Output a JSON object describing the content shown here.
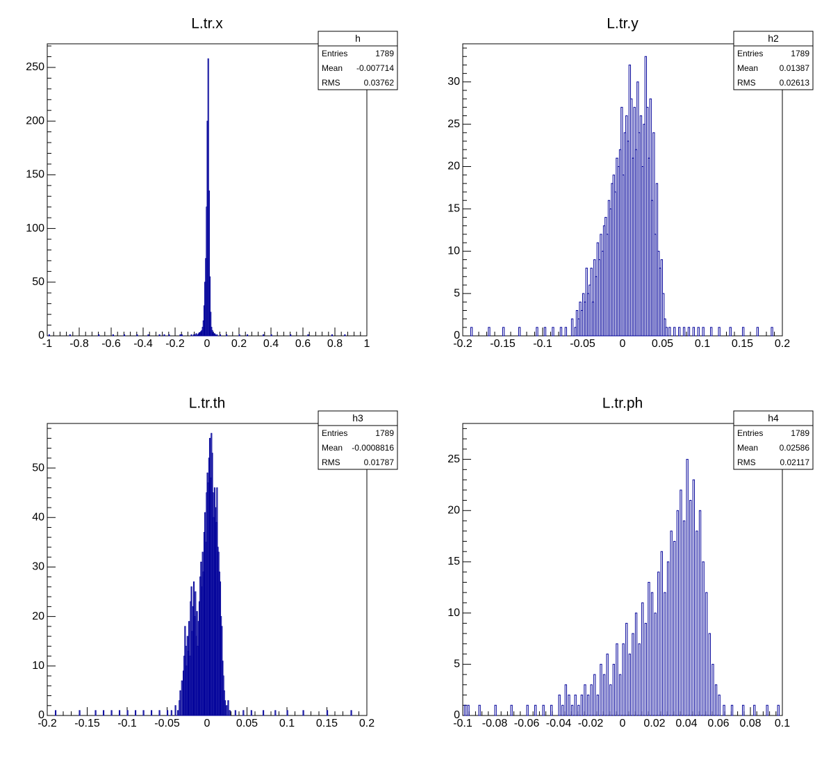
{
  "colors": {
    "histogram": "#000099",
    "frame": "#000000",
    "background": "#ffffff"
  },
  "chart_data": [
    {
      "type": "histogram",
      "title": "L.tr.x",
      "xlim": [
        -1,
        1
      ],
      "ylim": [
        0,
        272
      ],
      "x_ticks": [
        -1,
        -0.8,
        -0.6,
        -0.4,
        -0.2,
        0,
        0.2,
        0.4,
        0.6,
        0.8,
        1
      ],
      "x_tick_labels": [
        "-1",
        "-0.8",
        "-0.6",
        "-0.4",
        "-0.2",
        "0",
        "0.2",
        "0.4",
        "0.6",
        "0.8",
        "1"
      ],
      "y_ticks": [
        0,
        50,
        100,
        150,
        200,
        250
      ],
      "y_tick_labels": [
        "0",
        "50",
        "100",
        "150",
        "200",
        "250"
      ],
      "stats": {
        "name": "h",
        "rows": [
          {
            "label": "Entries",
            "value": "1789"
          },
          {
            "label": "Mean",
            "value": "-0.007714"
          },
          {
            "label": "RMS",
            "value": "0.03762"
          }
        ]
      },
      "bin_width": 0.005,
      "bins": [
        [
          -0.99,
          1
        ],
        [
          -0.86,
          1
        ],
        [
          -0.68,
          1
        ],
        [
          -0.59,
          1
        ],
        [
          -0.52,
          1
        ],
        [
          -0.44,
          1
        ],
        [
          -0.37,
          1
        ],
        [
          -0.3,
          1
        ],
        [
          -0.27,
          1
        ],
        [
          -0.24,
          1
        ],
        [
          -0.17,
          1
        ],
        [
          -0.16,
          1
        ],
        [
          -0.1,
          1
        ],
        [
          -0.085,
          1
        ],
        [
          -0.08,
          1
        ],
        [
          -0.07,
          2
        ],
        [
          -0.06,
          1
        ],
        [
          -0.055,
          2
        ],
        [
          -0.05,
          3
        ],
        [
          -0.045,
          3
        ],
        [
          -0.04,
          4
        ],
        [
          -0.035,
          5
        ],
        [
          -0.03,
          8
        ],
        [
          -0.025,
          14
        ],
        [
          -0.02,
          28
        ],
        [
          -0.015,
          50
        ],
        [
          -0.01,
          72
        ],
        [
          -0.005,
          120
        ],
        [
          0,
          200
        ],
        [
          0.005,
          258
        ],
        [
          0.01,
          135
        ],
        [
          0.015,
          55
        ],
        [
          0.02,
          22
        ],
        [
          0.025,
          8
        ],
        [
          0.03,
          5
        ],
        [
          0.035,
          3
        ],
        [
          0.04,
          2
        ],
        [
          0.045,
          2
        ],
        [
          0.05,
          1
        ],
        [
          0.06,
          1
        ],
        [
          0.08,
          1
        ],
        [
          0.12,
          1
        ],
        [
          0.2,
          1
        ],
        [
          0.25,
          1
        ],
        [
          0.35,
          1
        ],
        [
          0.4,
          1
        ],
        [
          0.52,
          1
        ],
        [
          0.63,
          1
        ],
        [
          0.78,
          1
        ],
        [
          0.86,
          1
        ]
      ]
    },
    {
      "type": "histogram",
      "title": "L.tr.y",
      "xlim": [
        -0.2,
        0.2
      ],
      "ylim": [
        0,
        34.5
      ],
      "x_ticks": [
        -0.2,
        -0.15,
        -0.1,
        -0.05,
        0,
        0.05,
        0.1,
        0.15,
        0.2
      ],
      "x_tick_labels": [
        "-0.2",
        "-0.15",
        "-0.1",
        "-0.05",
        "0",
        "0.05",
        "0.1",
        "0.15",
        "0.2"
      ],
      "y_ticks": [
        0,
        5,
        10,
        15,
        20,
        25,
        30
      ],
      "y_tick_labels": [
        "0",
        "5",
        "10",
        "15",
        "20",
        "25",
        "30"
      ],
      "stats": {
        "name": "h2",
        "rows": [
          {
            "label": "Entries",
            "value": "1789"
          },
          {
            "label": "Mean",
            "value": "0.01387"
          },
          {
            "label": "RMS",
            "value": "0.02613"
          }
        ]
      },
      "bin_width": 0.002,
      "bins": [
        [
          -0.19,
          1
        ],
        [
          -0.168,
          1
        ],
        [
          -0.15,
          1
        ],
        [
          -0.13,
          1
        ],
        [
          -0.108,
          1
        ],
        [
          -0.098,
          1
        ],
        [
          -0.088,
          1
        ],
        [
          -0.078,
          1
        ],
        [
          -0.072,
          1
        ],
        [
          -0.064,
          2
        ],
        [
          -0.06,
          1
        ],
        [
          -0.058,
          3
        ],
        [
          -0.056,
          2
        ],
        [
          -0.054,
          4
        ],
        [
          -0.052,
          3
        ],
        [
          -0.05,
          5
        ],
        [
          -0.048,
          4
        ],
        [
          -0.046,
          8
        ],
        [
          -0.044,
          5
        ],
        [
          -0.042,
          6
        ],
        [
          -0.04,
          8
        ],
        [
          -0.038,
          4
        ],
        [
          -0.036,
          9
        ],
        [
          -0.034,
          7
        ],
        [
          -0.032,
          11
        ],
        [
          -0.03,
          9
        ],
        [
          -0.028,
          12
        ],
        [
          -0.026,
          10
        ],
        [
          -0.024,
          13
        ],
        [
          -0.022,
          14
        ],
        [
          -0.02,
          12
        ],
        [
          -0.018,
          16
        ],
        [
          -0.016,
          15
        ],
        [
          -0.014,
          18
        ],
        [
          -0.012,
          19
        ],
        [
          -0.01,
          17
        ],
        [
          -0.008,
          21
        ],
        [
          -0.006,
          20
        ],
        [
          -0.004,
          22
        ],
        [
          -0.002,
          27
        ],
        [
          0,
          19
        ],
        [
          0.002,
          24
        ],
        [
          0.004,
          26
        ],
        [
          0.006,
          23
        ],
        [
          0.008,
          32
        ],
        [
          0.01,
          28
        ],
        [
          0.012,
          21
        ],
        [
          0.014,
          27
        ],
        [
          0.016,
          22
        ],
        [
          0.018,
          30
        ],
        [
          0.02,
          24
        ],
        [
          0.022,
          26
        ],
        [
          0.024,
          20
        ],
        [
          0.026,
          25
        ],
        [
          0.028,
          33
        ],
        [
          0.03,
          27
        ],
        [
          0.032,
          21
        ],
        [
          0.034,
          28
        ],
        [
          0.036,
          16
        ],
        [
          0.038,
          24
        ],
        [
          0.04,
          12
        ],
        [
          0.042,
          18
        ],
        [
          0.044,
          10
        ],
        [
          0.046,
          8
        ],
        [
          0.048,
          9
        ],
        [
          0.05,
          5
        ],
        [
          0.052,
          2
        ],
        [
          0.054,
          1
        ],
        [
          0.058,
          1
        ],
        [
          0.064,
          1
        ],
        [
          0.07,
          1
        ],
        [
          0.076,
          1
        ],
        [
          0.082,
          1
        ],
        [
          0.088,
          1
        ],
        [
          0.094,
          1
        ],
        [
          0.1,
          1
        ],
        [
          0.11,
          1
        ],
        [
          0.12,
          1
        ],
        [
          0.134,
          1
        ],
        [
          0.15,
          1
        ],
        [
          0.168,
          1
        ],
        [
          0.186,
          1
        ]
      ]
    },
    {
      "type": "histogram",
      "title": "L.tr.th",
      "xlim": [
        -0.2,
        0.2
      ],
      "ylim": [
        0,
        59
      ],
      "x_ticks": [
        -0.2,
        -0.15,
        -0.1,
        -0.05,
        0,
        0.05,
        0.1,
        0.15,
        0.2
      ],
      "x_tick_labels": [
        "-0.2",
        "-0.15",
        "-0.1",
        "-0.05",
        "0",
        "0.05",
        "0.1",
        "0.15",
        "0.2"
      ],
      "y_ticks": [
        0,
        10,
        20,
        30,
        40,
        50
      ],
      "y_tick_labels": [
        "0",
        "10",
        "20",
        "30",
        "40",
        "50"
      ],
      "stats": {
        "name": "h3",
        "rows": [
          {
            "label": "Entries",
            "value": "1789"
          },
          {
            "label": "Mean",
            "value": "-0.0008816"
          },
          {
            "label": "RMS",
            "value": "0.01787"
          }
        ]
      },
      "bin_width": 0.001,
      "bins": [
        [
          -0.19,
          1
        ],
        [
          -0.16,
          1
        ],
        [
          -0.14,
          1
        ],
        [
          -0.13,
          1
        ],
        [
          -0.12,
          1
        ],
        [
          -0.11,
          1
        ],
        [
          -0.1,
          1
        ],
        [
          -0.09,
          1
        ],
        [
          -0.08,
          1
        ],
        [
          -0.07,
          1
        ],
        [
          -0.06,
          1
        ],
        [
          -0.05,
          1
        ],
        [
          -0.045,
          1
        ],
        [
          -0.04,
          2
        ],
        [
          -0.037,
          1
        ],
        [
          -0.035,
          3
        ],
        [
          -0.034,
          5
        ],
        [
          -0.032,
          7
        ],
        [
          -0.03,
          9
        ],
        [
          -0.029,
          12
        ],
        [
          -0.028,
          18
        ],
        [
          -0.027,
          14
        ],
        [
          -0.026,
          10
        ],
        [
          -0.025,
          16
        ],
        [
          -0.024,
          13
        ],
        [
          -0.023,
          19
        ],
        [
          -0.022,
          12
        ],
        [
          -0.021,
          23
        ],
        [
          -0.02,
          26
        ],
        [
          -0.019,
          17
        ],
        [
          -0.018,
          22
        ],
        [
          -0.017,
          27
        ],
        [
          -0.016,
          20
        ],
        [
          -0.015,
          25
        ],
        [
          -0.014,
          16
        ],
        [
          -0.013,
          21
        ],
        [
          -0.012,
          14
        ],
        [
          -0.011,
          19
        ],
        [
          -0.01,
          23
        ],
        [
          -0.009,
          28
        ],
        [
          -0.008,
          31
        ],
        [
          -0.007,
          26
        ],
        [
          -0.006,
          33
        ],
        [
          -0.005,
          29
        ],
        [
          -0.004,
          37
        ],
        [
          -0.003,
          41
        ],
        [
          -0.002,
          35
        ],
        [
          -0.001,
          45
        ],
        [
          0,
          49
        ],
        [
          0.001,
          47
        ],
        [
          0.002,
          52
        ],
        [
          0.003,
          56
        ],
        [
          0.004,
          48
        ],
        [
          0.005,
          57
        ],
        [
          0.006,
          53
        ],
        [
          0.007,
          45
        ],
        [
          0.008,
          40
        ],
        [
          0.009,
          46
        ],
        [
          0.01,
          42
        ],
        [
          0.011,
          39
        ],
        [
          0.012,
          46
        ],
        [
          0.013,
          34
        ],
        [
          0.014,
          33
        ],
        [
          0.015,
          29
        ],
        [
          0.016,
          27
        ],
        [
          0.017,
          20
        ],
        [
          0.018,
          18
        ],
        [
          0.019,
          11
        ],
        [
          0.02,
          8
        ],
        [
          0.021,
          5
        ],
        [
          0.022,
          3
        ],
        [
          0.024,
          2
        ],
        [
          0.026,
          3
        ],
        [
          0.028,
          1
        ],
        [
          0.035,
          1
        ],
        [
          0.045,
          1
        ],
        [
          0.055,
          1
        ],
        [
          0.07,
          1
        ],
        [
          0.085,
          1
        ],
        [
          0.1,
          1
        ],
        [
          0.12,
          1
        ],
        [
          0.15,
          1
        ],
        [
          0.18,
          1
        ]
      ]
    },
    {
      "type": "histogram",
      "title": "L.tr.ph",
      "xlim": [
        -0.1,
        0.1
      ],
      "ylim": [
        0,
        28.5
      ],
      "x_ticks": [
        -0.1,
        -0.08,
        -0.06,
        -0.04,
        -0.02,
        0,
        0.02,
        0.04,
        0.06,
        0.08,
        0.1
      ],
      "x_tick_labels": [
        "-0.1",
        "-0.08",
        "-0.06",
        "-0.04",
        "-0.02",
        "0",
        "0.02",
        "0.04",
        "0.06",
        "0.08",
        "0.1"
      ],
      "y_ticks": [
        0,
        5,
        10,
        15,
        20,
        25
      ],
      "y_tick_labels": [
        "0",
        "5",
        "10",
        "15",
        "20",
        "25"
      ],
      "stats": {
        "name": "h4",
        "rows": [
          {
            "label": "Entries",
            "value": "1789"
          },
          {
            "label": "Mean",
            "value": "0.02586"
          },
          {
            "label": "RMS",
            "value": "0.02117"
          }
        ]
      },
      "bin_width": 0.001,
      "bins": [
        [
          -0.099,
          1
        ],
        [
          -0.097,
          1
        ],
        [
          -0.09,
          1
        ],
        [
          -0.08,
          1
        ],
        [
          -0.07,
          1
        ],
        [
          -0.06,
          1
        ],
        [
          -0.055,
          1
        ],
        [
          -0.05,
          1
        ],
        [
          -0.045,
          1
        ],
        [
          -0.04,
          2
        ],
        [
          -0.038,
          1
        ],
        [
          -0.036,
          3
        ],
        [
          -0.034,
          2
        ],
        [
          -0.032,
          1
        ],
        [
          -0.03,
          2
        ],
        [
          -0.028,
          1
        ],
        [
          -0.026,
          2
        ],
        [
          -0.024,
          3
        ],
        [
          -0.022,
          2
        ],
        [
          -0.02,
          3
        ],
        [
          -0.018,
          4
        ],
        [
          -0.016,
          2
        ],
        [
          -0.014,
          5
        ],
        [
          -0.012,
          4
        ],
        [
          -0.01,
          6
        ],
        [
          -0.008,
          3
        ],
        [
          -0.006,
          5
        ],
        [
          -0.004,
          7
        ],
        [
          -0.002,
          4
        ],
        [
          0,
          7
        ],
        [
          0.002,
          9
        ],
        [
          0.004,
          6
        ],
        [
          0.006,
          8
        ],
        [
          0.008,
          10
        ],
        [
          0.01,
          7
        ],
        [
          0.012,
          11
        ],
        [
          0.014,
          9
        ],
        [
          0.016,
          13
        ],
        [
          0.018,
          12
        ],
        [
          0.02,
          10
        ],
        [
          0.022,
          14
        ],
        [
          0.024,
          16
        ],
        [
          0.026,
          12
        ],
        [
          0.028,
          15
        ],
        [
          0.03,
          18
        ],
        [
          0.032,
          17
        ],
        [
          0.034,
          20
        ],
        [
          0.036,
          22
        ],
        [
          0.038,
          19
        ],
        [
          0.04,
          25
        ],
        [
          0.042,
          21
        ],
        [
          0.044,
          23
        ],
        [
          0.046,
          18
        ],
        [
          0.048,
          20
        ],
        [
          0.05,
          15
        ],
        [
          0.052,
          12
        ],
        [
          0.054,
          8
        ],
        [
          0.056,
          5
        ],
        [
          0.058,
          3
        ],
        [
          0.06,
          2
        ],
        [
          0.063,
          1
        ],
        [
          0.068,
          1
        ],
        [
          0.075,
          1
        ],
        [
          0.082,
          1
        ],
        [
          0.09,
          1
        ],
        [
          0.097,
          1
        ]
      ]
    }
  ]
}
